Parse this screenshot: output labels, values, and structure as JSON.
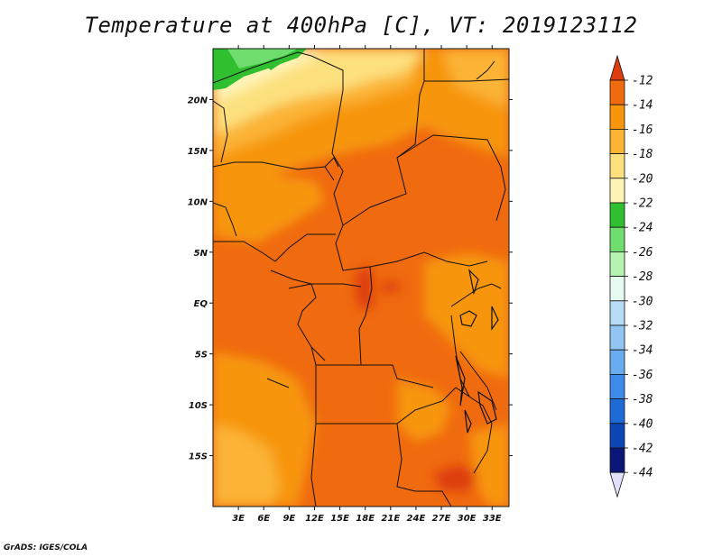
{
  "title": "Temperature at 400hPa [C], VT: 2019123112",
  "credit": "GrADS: IGES/COLA",
  "map": {
    "lat_ticks": [
      "20N",
      "15N",
      "10N",
      "5N",
      "EQ",
      "5S",
      "10S",
      "15S"
    ],
    "lon_ticks": [
      "3E",
      "6E",
      "9E",
      "12E",
      "15E",
      "18E",
      "21E",
      "24E",
      "27E",
      "30E",
      "33E"
    ],
    "lon_range_deg": [
      0,
      35
    ],
    "lat_range_deg": [
      -20,
      25
    ]
  },
  "colorbar": {
    "labels": [
      "-12",
      "-14",
      "-16",
      "-18",
      "-20",
      "-22",
      "-24",
      "-26",
      "-28",
      "-30",
      "-32",
      "-34",
      "-36",
      "-38",
      "-40",
      "-42",
      "-44"
    ],
    "colors": [
      "#dd3c10",
      "#f06a10",
      "#f7960d",
      "#fbb434",
      "#fde07e",
      "#fff4b8",
      "#2fbf2f",
      "#6fde6f",
      "#b6f2b0",
      "#e6fbef",
      "#b8dcf6",
      "#92c6f2",
      "#6aacf0",
      "#3f8ae8",
      "#1e6ad6",
      "#0c45b4",
      "#0a1678",
      "#e0e0fa"
    ]
  }
}
